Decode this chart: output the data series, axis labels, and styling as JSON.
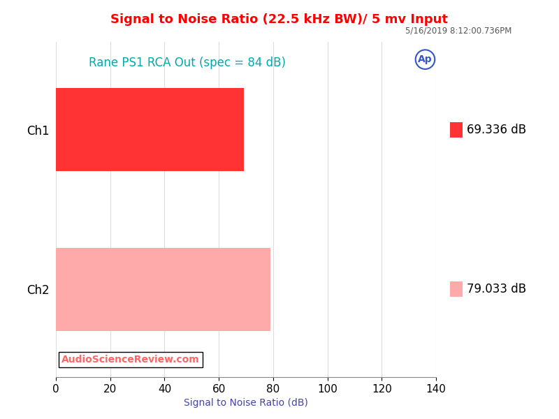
{
  "title": "Signal to Noise Ratio (22.5 kHz BW)/ 5 mv Input",
  "subtitle": "5/16/2019 8:12:00.736PM",
  "annotation": "Rane PS1 RCA Out (spec = 84 dB)",
  "watermark": "AudioScienceReview.com",
  "xlabel": "Signal to Noise Ratio (dB)",
  "categories": [
    "Ch1",
    "Ch2"
  ],
  "values": [
    69.336,
    79.033
  ],
  "bar_colors": [
    "#FF3333",
    "#FFAAAA"
  ],
  "legend_labels": [
    "69.336 dB",
    "79.033 dB"
  ],
  "xlim": [
    0,
    140
  ],
  "xticks": [
    0,
    20,
    40,
    60,
    80,
    100,
    120,
    140
  ],
  "title_color": "#FF0000",
  "subtitle_color": "#555555",
  "annotation_color": "#00AAAA",
  "watermark_color": "#FF6666",
  "xlabel_color": "#4444AA",
  "background_color": "#FFFFFF",
  "grid_color": "#DDDDDD",
  "ap_color": "#3355CC"
}
